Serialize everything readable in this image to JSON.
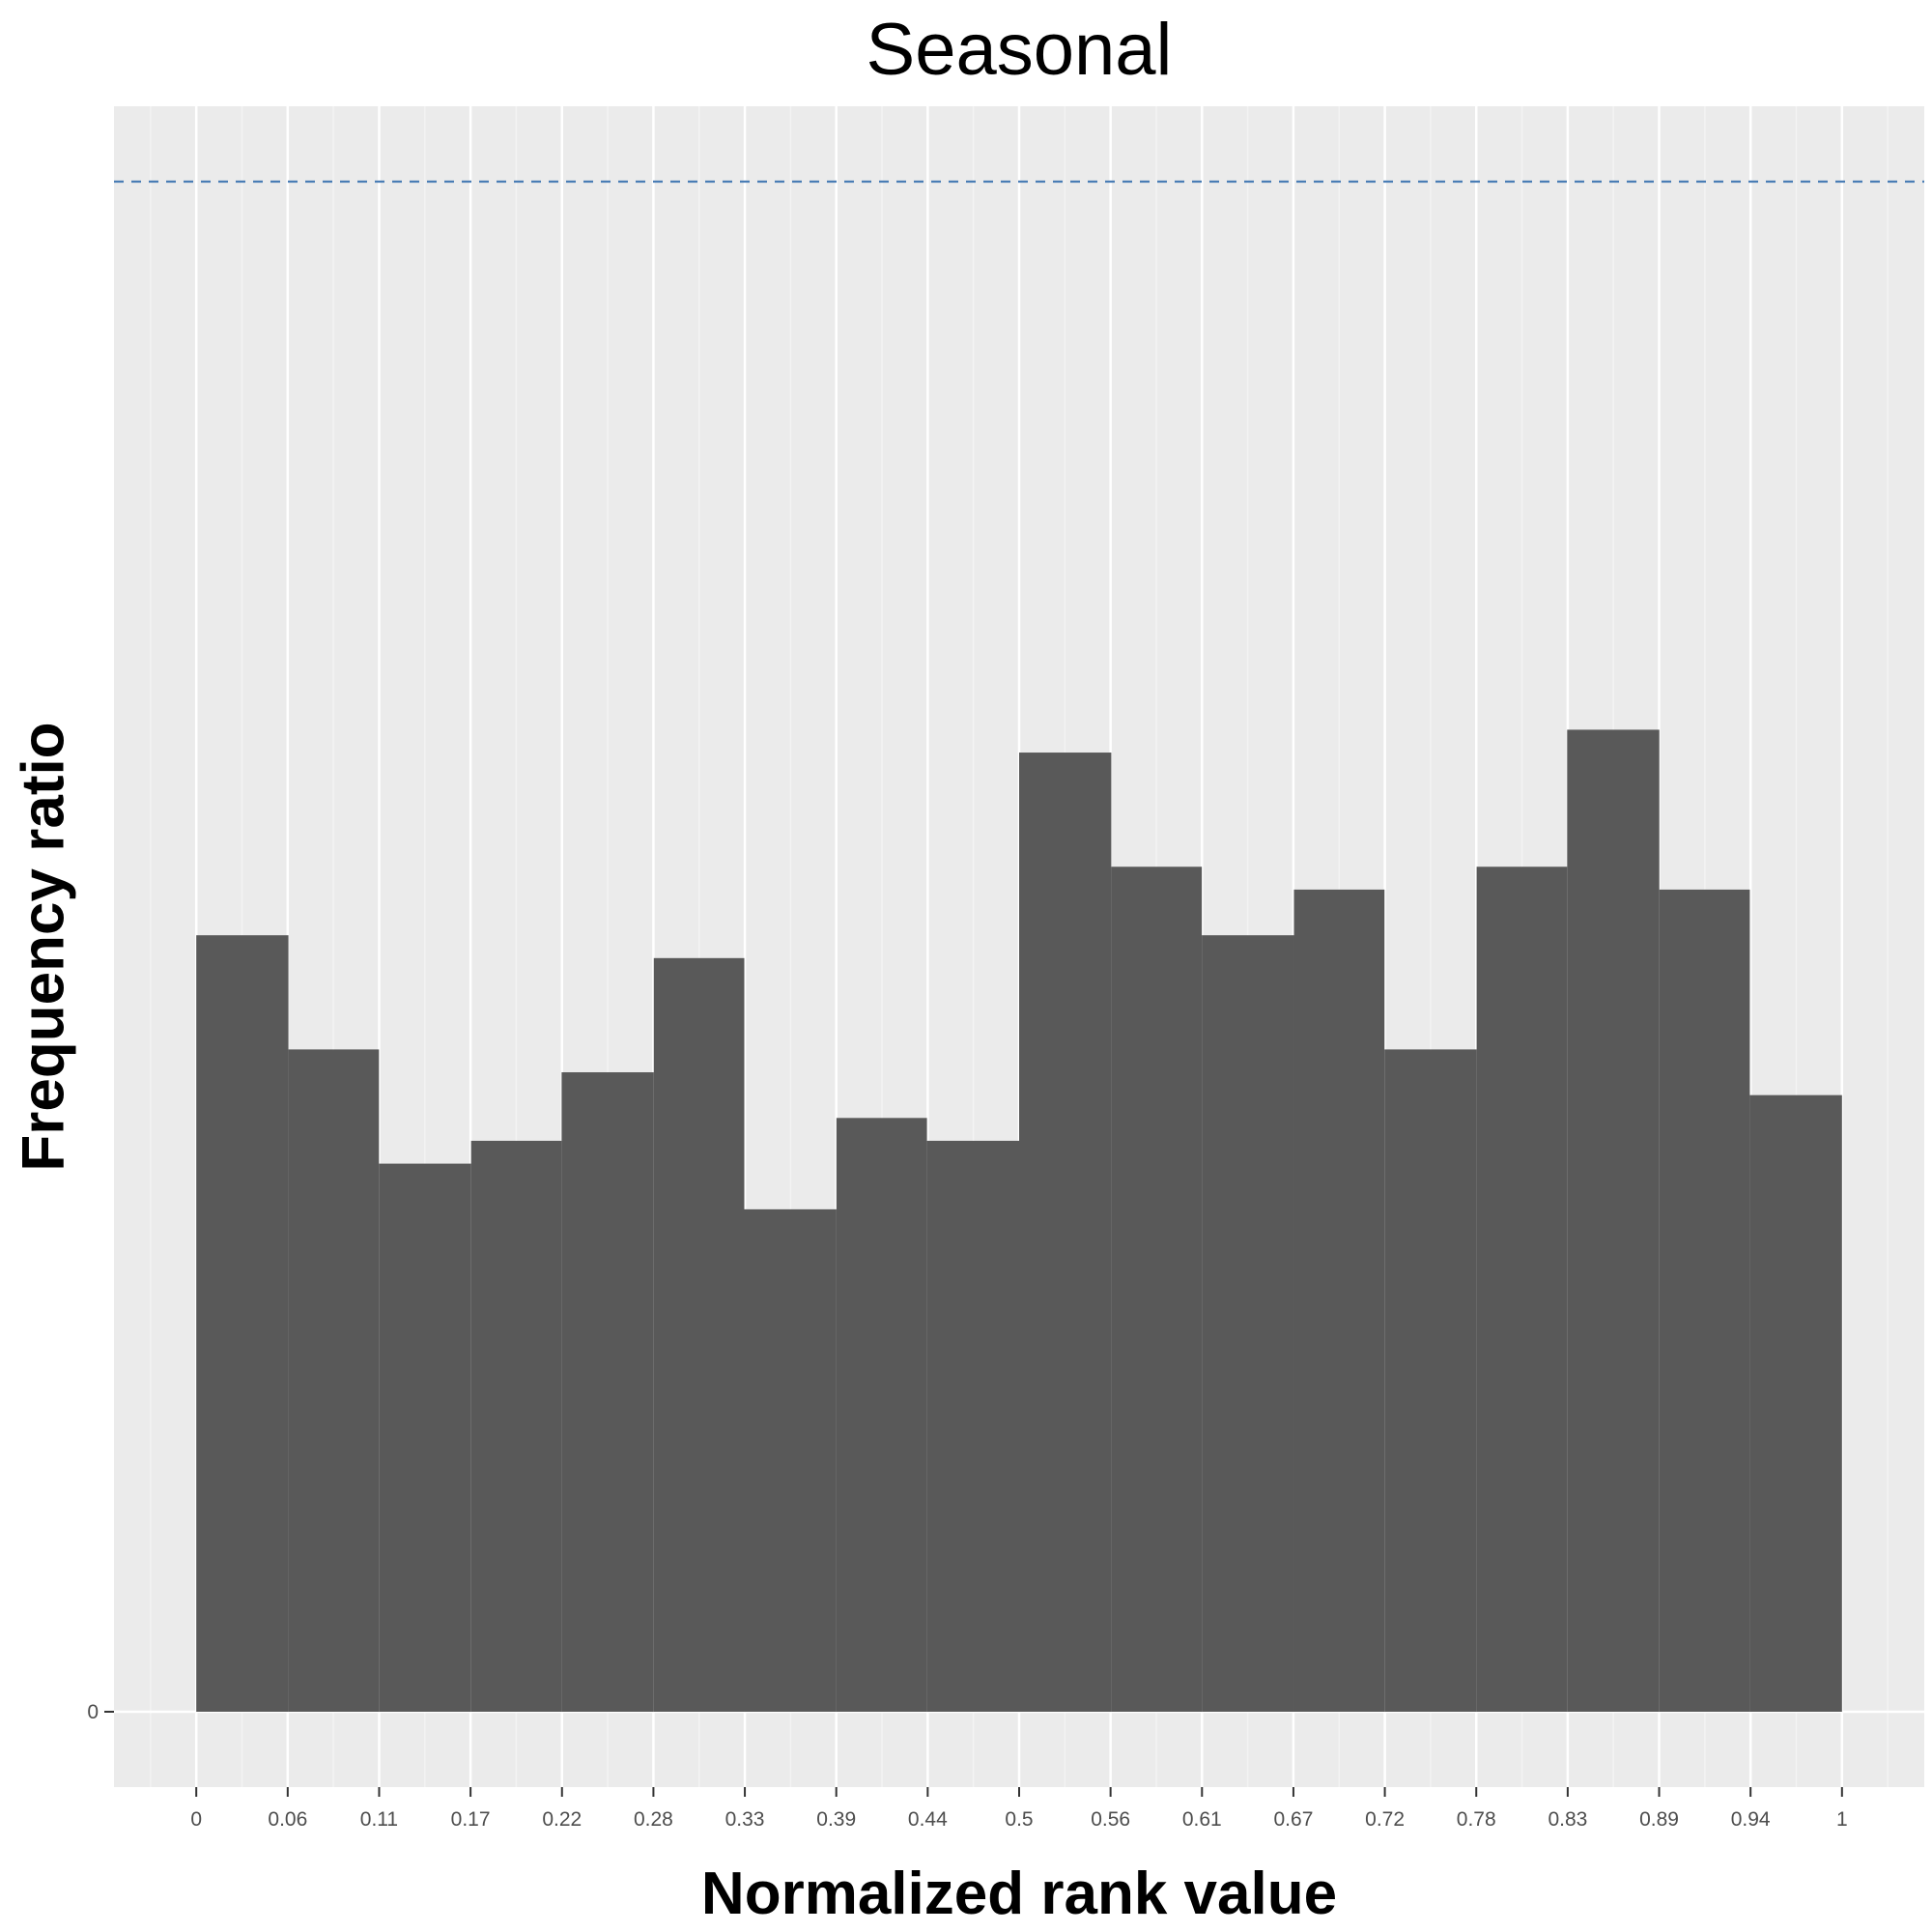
{
  "chart_data": {
    "type": "bar",
    "title": "Seasonal",
    "xlabel": "Normalized rank value",
    "ylabel": "Frequency ratio",
    "x_tick_labels": [
      "0",
      "0.06",
      "0.11",
      "0.17",
      "0.22",
      "0.28",
      "0.33",
      "0.39",
      "0.44",
      "0.5",
      "0.56",
      "0.61",
      "0.67",
      "0.72",
      "0.78",
      "0.83",
      "0.89",
      "0.94",
      "1"
    ],
    "y_tick_labels": [
      "0"
    ],
    "bins": [
      {
        "x_start": 0.0,
        "x_end": 0.056,
        "value": 34
      },
      {
        "x_start": 0.056,
        "x_end": 0.111,
        "value": 29
      },
      {
        "x_start": 0.111,
        "x_end": 0.167,
        "value": 24
      },
      {
        "x_start": 0.167,
        "x_end": 0.222,
        "value": 25
      },
      {
        "x_start": 0.222,
        "x_end": 0.278,
        "value": 28
      },
      {
        "x_start": 0.278,
        "x_end": 0.333,
        "value": 33
      },
      {
        "x_start": 0.333,
        "x_end": 0.389,
        "value": 22
      },
      {
        "x_start": 0.389,
        "x_end": 0.444,
        "value": 26
      },
      {
        "x_start": 0.444,
        "x_end": 0.5,
        "value": 25
      },
      {
        "x_start": 0.5,
        "x_end": 0.556,
        "value": 42
      },
      {
        "x_start": 0.556,
        "x_end": 0.611,
        "value": 37
      },
      {
        "x_start": 0.611,
        "x_end": 0.667,
        "value": 34
      },
      {
        "x_start": 0.667,
        "x_end": 0.722,
        "value": 36
      },
      {
        "x_start": 0.722,
        "x_end": 0.778,
        "value": 29
      },
      {
        "x_start": 0.778,
        "x_end": 0.833,
        "value": 37
      },
      {
        "x_start": 0.833,
        "x_end": 0.889,
        "value": 43
      },
      {
        "x_start": 0.889,
        "x_end": 0.944,
        "value": 36
      },
      {
        "x_start": 0.944,
        "x_end": 1.0,
        "value": 27
      }
    ],
    "reference_line": {
      "value": 67,
      "style": "dashed",
      "color": "#4a7db5"
    },
    "xlim": [
      -0.05,
      1.05
    ],
    "ylim": [
      -3.3,
      70.3
    ],
    "grid": true,
    "colors": {
      "bar_fill": "#595959",
      "panel_background": "#ebebeb",
      "grid_major": "#ffffff",
      "grid_minor": "#f3f3f3",
      "reference_line": "#4a7db5"
    }
  }
}
